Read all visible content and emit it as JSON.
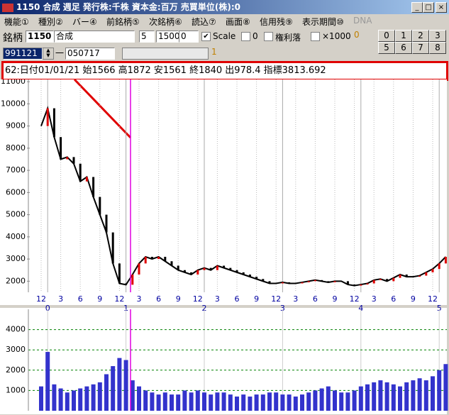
{
  "window": {
    "title": "1150 合成  週足   発行株:千株  資本金:百万  売買単位(株):0"
  },
  "menu": [
    "機能①",
    "種別②",
    "バー④",
    "前銘柄⑤",
    "次銘柄⑥",
    "読込⑦",
    "画面⑧",
    "信用残⑨",
    "表示期間⑩",
    "DNA"
  ],
  "toolbar": {
    "code_label": "銘柄",
    "code": "1150",
    "name": "合成",
    "field1": "5",
    "field2": "1500",
    "field3": "0",
    "scale": "Scale",
    "check_zero": "0",
    "check_rights": "権利落",
    "check_x1000": "×1000",
    "counter": "0",
    "buttons_top": [
      "0",
      "1",
      "2",
      "3"
    ],
    "buttons_bottom": [
      "5",
      "6",
      "7",
      "8"
    ],
    "date_from": "991121",
    "dash": "一",
    "date_to": "050717",
    "page": "1"
  },
  "info_line": "62:日付01/01/21 始1566 高1872 安1561 終1840 出978.4 指標3813.692",
  "chart_data": [
    {
      "type": "line",
      "color": "#000000",
      "categories": [
        "12",
        null,
        null,
        "3",
        null,
        null,
        "6",
        null,
        null,
        "9",
        null,
        null,
        "12",
        null,
        null,
        "3",
        null,
        null,
        "6",
        null,
        null,
        "9",
        null,
        null,
        "12",
        null,
        null,
        "3",
        null,
        null,
        "6",
        null,
        null,
        "9",
        null,
        null,
        "12",
        null,
        null,
        "3",
        null,
        null,
        "6",
        null,
        null,
        "9",
        null,
        null,
        "12",
        null,
        null,
        "3",
        null,
        null,
        "6",
        null,
        null,
        "9",
        null,
        null,
        "12",
        null,
        null
      ],
      "year_labels": [
        null,
        "0",
        null,
        null,
        null,
        null,
        null,
        null,
        null,
        null,
        null,
        null,
        null,
        "1",
        null,
        null,
        null,
        null,
        null,
        null,
        null,
        null,
        null,
        null,
        null,
        "2",
        null,
        null,
        null,
        null,
        null,
        null,
        null,
        null,
        null,
        null,
        null,
        "3",
        null,
        null,
        null,
        null,
        null,
        null,
        null,
        null,
        null,
        null,
        null,
        "4",
        null,
        null,
        null,
        null,
        null,
        null,
        null,
        null,
        null,
        null,
        null,
        "5",
        null
      ],
      "values": [
        9000,
        9800,
        8500,
        7500,
        7600,
        7300,
        6500,
        6700,
        5800,
        5000,
        4200,
        2800,
        1900,
        1840,
        2300,
        2800,
        3100,
        3000,
        3100,
        2900,
        2700,
        2500,
        2400,
        2300,
        2500,
        2600,
        2500,
        2700,
        2600,
        2500,
        2400,
        2300,
        2200,
        2100,
        2000,
        1900,
        1900,
        1950,
        1900,
        1900,
        1950,
        2000,
        2050,
        2000,
        1950,
        2000,
        2000,
        1850,
        1800,
        1850,
        1900,
        2050,
        2100,
        2000,
        2150,
        2300,
        2200,
        2200,
        2250,
        2400,
        2550,
        2800,
        3100
      ],
      "ylim": [
        1500,
        11100
      ],
      "yticks": [
        2000,
        3000,
        4000,
        5000,
        6000,
        7000,
        8000,
        9000,
        10000,
        11000
      ]
    },
    {
      "type": "bar",
      "color": "#3333cc",
      "values": [
        1200,
        2900,
        1300,
        1100,
        900,
        1000,
        1100,
        1200,
        1300,
        1400,
        1800,
        2200,
        2600,
        2500,
        1500,
        1200,
        1000,
        900,
        800,
        900,
        800,
        800,
        1000,
        900,
        1000,
        900,
        800,
        900,
        900,
        800,
        700,
        800,
        700,
        800,
        800,
        900,
        900,
        800,
        800,
        700,
        800,
        900,
        1000,
        1100,
        1200,
        1000,
        900,
        900,
        1000,
        1200,
        1300,
        1400,
        1500,
        1400,
        1300,
        1200,
        1400,
        1500,
        1600,
        1500,
        1700,
        2000,
        2300
      ],
      "ylim": [
        0,
        5000
      ],
      "yticks": [
        1000,
        2000,
        3000,
        4000
      ],
      "grid": true
    }
  ]
}
